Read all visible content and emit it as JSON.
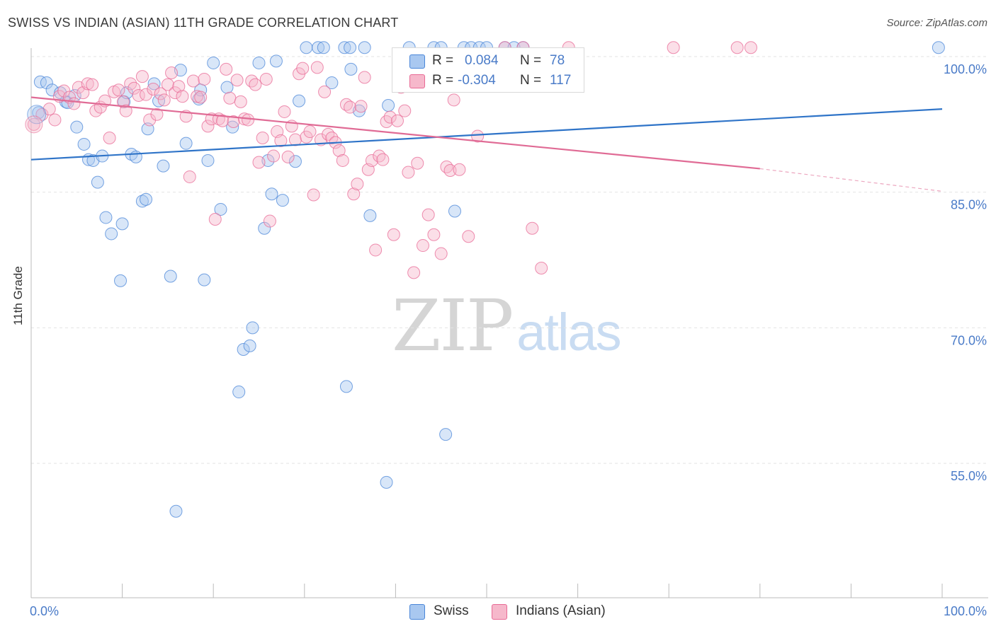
{
  "title": "SWISS VS INDIAN (ASIAN) 11TH GRADE CORRELATION CHART",
  "source": "Source: ZipAtlas.com",
  "watermark": {
    "zip": "ZIP",
    "atlas": "atlas"
  },
  "legend": {
    "r_label": "R =",
    "n_label": "N =",
    "rows": [
      {
        "name": "Swiss",
        "r": "0.084",
        "n": "78",
        "color": "#a9c8f0"
      },
      {
        "name": "Indians (Asian)",
        "r": "-0.304",
        "n": "117",
        "color": "#f6b8cb"
      }
    ]
  },
  "chart_data": {
    "type": "scatter",
    "title": "SWISS VS INDIAN (ASIAN) 11TH GRADE CORRELATION CHART",
    "xlabel": "",
    "ylabel": "11th Grade",
    "xlim": [
      0,
      100
    ],
    "ylim": [
      41.5,
      101.5
    ],
    "x_tick_labels": [
      {
        "value": 0,
        "label": "0.0%"
      },
      {
        "value": 100,
        "label": "100.0%"
      }
    ],
    "y_ticks": [
      {
        "value": 100,
        "label": "100.0%"
      },
      {
        "value": 85,
        "label": "85.0%"
      },
      {
        "value": 70,
        "label": "70.0%"
      },
      {
        "value": 55,
        "label": "55.0%"
      }
    ],
    "grid": true,
    "legend_position": "top-center",
    "series": [
      {
        "name": "Swiss",
        "color": "#4a86d8",
        "fill": "#a9c8f0",
        "trend": {
          "x": [
            0,
            100
          ],
          "y": [
            88.6,
            94.2
          ],
          "color": "#2f74c8"
        },
        "points": [
          [
            0.8,
            93.8
          ],
          [
            1,
            97.2
          ],
          [
            1.7,
            97.1
          ],
          [
            2.3,
            96.3
          ],
          [
            3.2,
            96.0
          ],
          [
            3.8,
            95.0
          ],
          [
            4,
            94.9
          ],
          [
            4.8,
            95.7
          ],
          [
            5,
            92.2
          ],
          [
            5.8,
            90.3
          ],
          [
            6.3,
            88.6
          ],
          [
            6.8,
            88.5
          ],
          [
            7.3,
            86.1
          ],
          [
            7.8,
            89.0
          ],
          [
            8.2,
            82.2
          ],
          [
            8.8,
            80.4
          ],
          [
            9.8,
            75.2
          ],
          [
            10,
            81.5
          ],
          [
            10.2,
            95.0
          ],
          [
            10.5,
            96.0
          ],
          [
            11,
            89.2
          ],
          [
            11.5,
            88.9
          ],
          [
            12.2,
            84.0
          ],
          [
            12.6,
            84.2
          ],
          [
            12.8,
            92.0
          ],
          [
            13.5,
            97.0
          ],
          [
            14,
            95.1
          ],
          [
            14.5,
            87.9
          ],
          [
            15.3,
            75.7
          ],
          [
            15.9,
            49.7
          ],
          [
            16.4,
            98.5
          ],
          [
            17,
            90.4
          ],
          [
            18.4,
            95.3
          ],
          [
            18.6,
            96.3
          ],
          [
            19,
            75.3
          ],
          [
            19.4,
            88.5
          ],
          [
            20,
            99.3
          ],
          [
            20.8,
            83.1
          ],
          [
            21.5,
            96.6
          ],
          [
            22.1,
            92.2
          ],
          [
            22.8,
            62.9
          ],
          [
            23.3,
            67.6
          ],
          [
            24,
            68.0
          ],
          [
            24.3,
            70.0
          ],
          [
            25,
            99.3
          ],
          [
            25.6,
            81.0
          ],
          [
            26,
            88.5
          ],
          [
            26.4,
            84.8
          ],
          [
            26.9,
            99.5
          ],
          [
            27.6,
            84.1
          ],
          [
            29,
            88.4
          ],
          [
            29.4,
            95.1
          ],
          [
            30.2,
            101.0
          ],
          [
            31.5,
            101.0
          ],
          [
            32.1,
            101.0
          ],
          [
            33,
            97.1
          ],
          [
            34.4,
            101.0
          ],
          [
            34.6,
            63.5
          ],
          [
            35,
            101.0
          ],
          [
            35.1,
            98.6
          ],
          [
            36,
            94.0
          ],
          [
            36.6,
            101.0
          ],
          [
            37.2,
            82.4
          ],
          [
            39,
            52.9
          ],
          [
            39.2,
            94.6
          ],
          [
            41.5,
            101.0
          ],
          [
            44.2,
            101.0
          ],
          [
            45,
            101.0
          ],
          [
            45.5,
            58.2
          ],
          [
            46.5,
            82.9
          ],
          [
            47.5,
            101.0
          ],
          [
            48.3,
            101.0
          ],
          [
            49.2,
            101.0
          ],
          [
            50,
            101.0
          ],
          [
            52,
            101.0
          ],
          [
            53,
            101.0
          ],
          [
            54,
            101.0
          ],
          [
            99.6,
            101.0
          ]
        ]
      },
      {
        "name": "Indians (Asian)",
        "color": "#e86a95",
        "fill": "#f6b8cb",
        "trend": {
          "x": [
            0,
            80
          ],
          "y": [
            95.5,
            87.6
          ],
          "color": "#e06b95",
          "dashed_extension_to": [
            100,
            85.1
          ]
        },
        "points": [
          [
            0.3,
            92.5
          ],
          [
            1.2,
            93.6
          ],
          [
            2,
            94.2
          ],
          [
            2.6,
            93.0
          ],
          [
            3.1,
            95.6
          ],
          [
            3.6,
            96.2
          ],
          [
            4.2,
            95.5
          ],
          [
            4.7,
            94.8
          ],
          [
            5.2,
            96.6
          ],
          [
            5.7,
            96.0
          ],
          [
            6.2,
            97.0
          ],
          [
            6.7,
            96.9
          ],
          [
            7.1,
            94.0
          ],
          [
            7.6,
            94.4
          ],
          [
            8.1,
            95.1
          ],
          [
            8.6,
            91.0
          ],
          [
            9.1,
            96.1
          ],
          [
            9.6,
            96.3
          ],
          [
            10.1,
            95.0
          ],
          [
            10.4,
            94.0
          ],
          [
            10.9,
            97.0
          ],
          [
            11.3,
            96.5
          ],
          [
            11.8,
            95.7
          ],
          [
            12.2,
            97.8
          ],
          [
            12.6,
            95.8
          ],
          [
            13,
            93.0
          ],
          [
            13.4,
            96.4
          ],
          [
            13.8,
            93.6
          ],
          [
            14.2,
            95.9
          ],
          [
            14.6,
            95.2
          ],
          [
            15,
            96.9
          ],
          [
            15.4,
            98.2
          ],
          [
            15.8,
            96.0
          ],
          [
            16.2,
            96.7
          ],
          [
            16.6,
            95.6
          ],
          [
            17,
            93.4
          ],
          [
            17.4,
            86.7
          ],
          [
            17.8,
            97.3
          ],
          [
            18.2,
            95.6
          ],
          [
            18.6,
            95.5
          ],
          [
            19,
            97.5
          ],
          [
            19.4,
            92.3
          ],
          [
            19.8,
            93.1
          ],
          [
            20.2,
            82.0
          ],
          [
            20.6,
            93.1
          ],
          [
            21,
            92.9
          ],
          [
            21.4,
            98.6
          ],
          [
            21.8,
            95.4
          ],
          [
            22.2,
            92.8
          ],
          [
            22.6,
            97.4
          ],
          [
            23,
            95.0
          ],
          [
            23.4,
            93.1
          ],
          [
            23.8,
            93.0
          ],
          [
            24.2,
            97.3
          ],
          [
            24.6,
            96.9
          ],
          [
            25,
            88.3
          ],
          [
            25.4,
            91.0
          ],
          [
            25.8,
            97.5
          ],
          [
            26.2,
            81.8
          ],
          [
            26.6,
            89.0
          ],
          [
            27,
            91.7
          ],
          [
            27.4,
            90.7
          ],
          [
            27.8,
            93.9
          ],
          [
            28.2,
            88.9
          ],
          [
            28.6,
            92.3
          ],
          [
            29,
            90.8
          ],
          [
            29.4,
            98.1
          ],
          [
            29.8,
            98.7
          ],
          [
            30.2,
            91.1
          ],
          [
            30.6,
            91.7
          ],
          [
            31,
            84.7
          ],
          [
            31.4,
            98.8
          ],
          [
            31.8,
            90.8
          ],
          [
            32.2,
            96.1
          ],
          [
            32.6,
            91.4
          ],
          [
            33,
            91.0
          ],
          [
            33.4,
            90.5
          ],
          [
            33.8,
            89.6
          ],
          [
            34.2,
            88.5
          ],
          [
            34.6,
            94.7
          ],
          [
            35,
            94.4
          ],
          [
            35.4,
            84.8
          ],
          [
            35.8,
            85.9
          ],
          [
            36.2,
            94.5
          ],
          [
            36.6,
            97.7
          ],
          [
            37,
            87.5
          ],
          [
            37.4,
            88.5
          ],
          [
            37.8,
            78.6
          ],
          [
            38.2,
            89.0
          ],
          [
            38.6,
            88.6
          ],
          [
            39,
            92.8
          ],
          [
            39.4,
            93.3
          ],
          [
            39.8,
            80.3
          ],
          [
            40.2,
            92.9
          ],
          [
            40.6,
            96.6
          ],
          [
            41,
            94.0
          ],
          [
            41.4,
            87.2
          ],
          [
            42,
            76.1
          ],
          [
            42.4,
            88.2
          ],
          [
            43,
            79.1
          ],
          [
            43.6,
            82.5
          ],
          [
            44.2,
            80.3
          ],
          [
            45,
            78.2
          ],
          [
            45.6,
            87.8
          ],
          [
            46,
            87.4
          ],
          [
            46.4,
            95.2
          ],
          [
            47,
            87.5
          ],
          [
            48,
            80.1
          ],
          [
            49,
            91.2
          ],
          [
            54,
            101.0
          ],
          [
            55,
            81.0
          ],
          [
            56,
            76.6
          ],
          [
            59,
            101.0
          ],
          [
            70.5,
            101.0
          ],
          [
            77.5,
            101.0
          ],
          [
            79,
            101.0
          ],
          [
            52,
            101.0
          ]
        ]
      }
    ]
  }
}
